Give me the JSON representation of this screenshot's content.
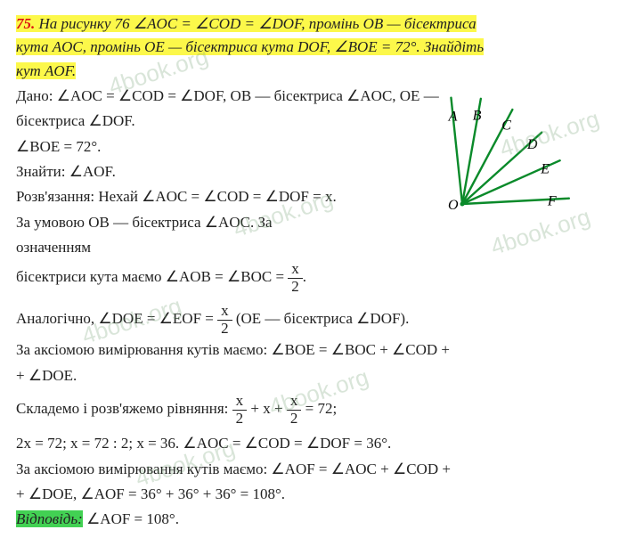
{
  "problem": {
    "number": "75.",
    "statement_l1": "На рисунку 76 ∠AOC = ∠COD = ∠DOF, промінь OB — бісектриса",
    "statement_l2": "кута AOC, промінь OE — бісектриса кута DOF, ∠BOE = 72°. Знайдіть",
    "statement_l3": "кут AOF."
  },
  "given": {
    "l1": "Дано: ∠AOC = ∠COD = ∠DOF, OB — бісектриса ∠AOC, OE —",
    "l2": "бісектриса ∠DOF.",
    "l3": "∠BOE = 72°.",
    "find": "Знайти: ∠AOF."
  },
  "solution": {
    "s1": "Розв'язання: Нехай ∠AOC = ∠COD = ∠DOF = x.",
    "s2": "За умовою OB — бісектриса ∠AOC. За",
    "s3": "означенням",
    "s4a": "бісектриси кута маємо ∠AOB = ∠BOС = ",
    "s4_frac_top": "x",
    "s4_frac_bot": "2",
    "s4b": ".",
    "s5a": "Аналогічно, ∠DOE = ∠EOF = ",
    "s5_frac_top": "x",
    "s5_frac_bot": "2",
    "s5b": " (OE — бісектриса ∠DOF).",
    "s6": "За аксіомою вимірювання кутів маємо: ∠BOE = ∠BOС + ∠COD +",
    "s7": "+ ∠DOE.",
    "s8a": "Складемо і розв'яжемо рівняння: ",
    "s8_f1_top": "x",
    "s8_f1_bot": "2",
    "s8b": " + x + ",
    "s8_f2_top": "x",
    "s8_f2_bot": "2",
    "s8c": " = 72;",
    "s9": "2x = 72; x = 72 : 2; x = 36. ∠AOC = ∠COD = ∠DOF = 36°.",
    "s10": "За аксіомою вимірювання кутів маємо: ∠AOF = ∠AOC + ∠COD +",
    "s11": "+ ∠DOE, ∠AOF = 36° + 36° + 36° = 108°."
  },
  "answer": {
    "label": "Відповідь:",
    "text": " ∠AOF = 108°."
  },
  "figure": {
    "O": "O",
    "A": "A",
    "B": "B",
    "C": "C",
    "D": "D",
    "E": "E",
    "F": "F",
    "ray_color": "#0a8a2a",
    "ray_width": 2.4,
    "label_font": 16
  },
  "watermark": "4book.org"
}
